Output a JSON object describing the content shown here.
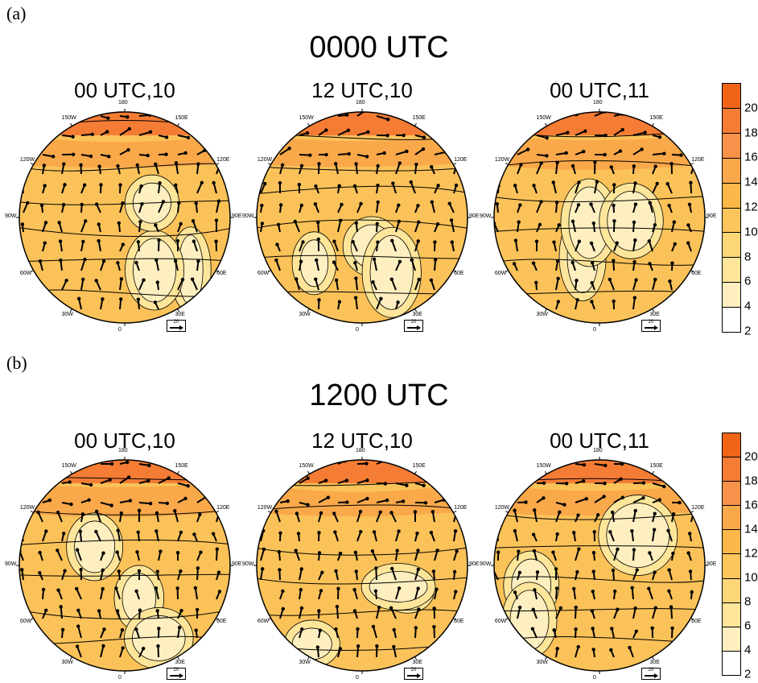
{
  "panels": [
    {
      "label": "(a)",
      "title": "0000 UTC",
      "maps": [
        {
          "title": "00 UTC,10",
          "lon_labels": [
            "180",
            "150E",
            "120E",
            "90E",
            "60E",
            "30E",
            "0",
            "30W",
            "60W",
            "90W",
            "120W",
            "150W"
          ],
          "ref_vector": "20",
          "pattern": 1
        },
        {
          "title": "12 UTC,10",
          "lon_labels": [
            "180",
            "150E",
            "120E",
            "90E",
            "60E",
            "30E",
            "0",
            "30W",
            "60W",
            "90W",
            "120W",
            "150W"
          ],
          "ref_vector": "20",
          "pattern": 2
        },
        {
          "title": "00 UTC,11",
          "lon_labels": [
            "180",
            "150E",
            "120E",
            "90E",
            "60E",
            "30E",
            "0",
            "30W",
            "60W",
            "90W",
            "120W",
            "150W"
          ],
          "ref_vector": "20",
          "pattern": 3
        }
      ]
    },
    {
      "label": "(b)",
      "title": "1200 UTC",
      "maps": [
        {
          "title": "00 UTC,10",
          "lon_labels": [
            "180",
            "150E",
            "120E",
            "90E",
            "60E",
            "30E",
            "0",
            "30W",
            "60W",
            "90W",
            "120W",
            "150W"
          ],
          "ref_vector": "20",
          "pattern": 4
        },
        {
          "title": "12 UTC,10",
          "lon_labels": [
            "180",
            "150E",
            "120E",
            "90E",
            "60E",
            "30E",
            "0",
            "30W",
            "60W",
            "90W",
            "120W",
            "150W"
          ],
          "ref_vector": "20",
          "pattern": 5
        },
        {
          "title": "00 UTC,11",
          "lon_labels": [
            "180",
            "150E",
            "120E",
            "90E",
            "60E",
            "30E",
            "0",
            "30W",
            "60W",
            "90W",
            "120W",
            "150W"
          ],
          "ref_vector": "20",
          "pattern": 6
        }
      ]
    }
  ],
  "colorbar": {
    "labels": [
      "20",
      "18",
      "16",
      "14",
      "12",
      "10",
      "8",
      "6",
      "4",
      "2"
    ],
    "colors": [
      "#f06418",
      "#f47c34",
      "#f7924a",
      "#f9a84a",
      "#fbb848",
      "#fcc65c",
      "#fdd678",
      "#fde59a",
      "#feefc0",
      "#ffffff"
    ]
  }
}
